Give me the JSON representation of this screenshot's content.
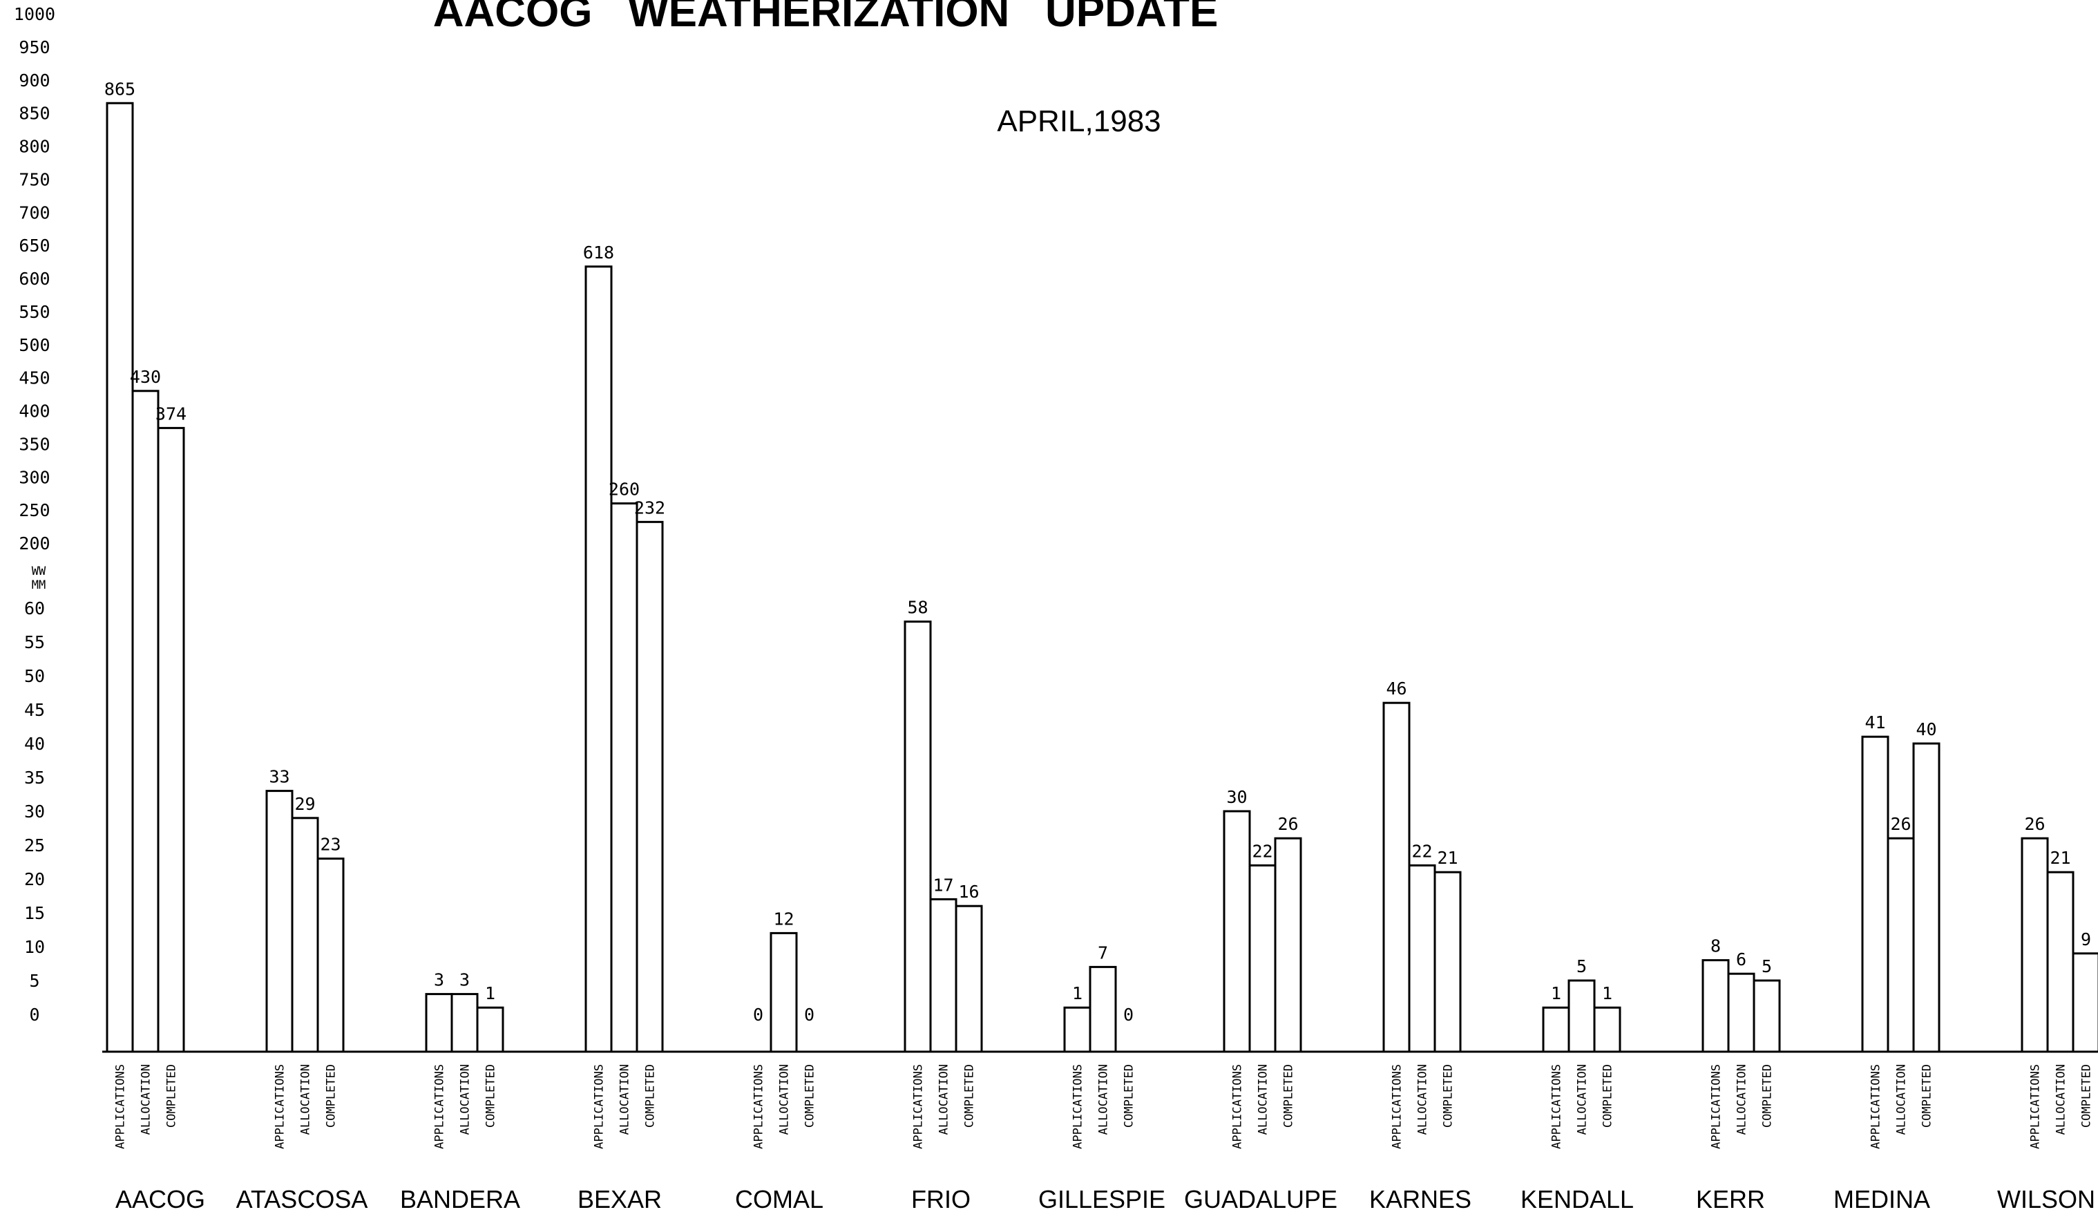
{
  "chart_data": {
    "type": "bar",
    "title": "AACOG   WEATHERIZATION   UPDATE",
    "subtitle": "APRIL,1983",
    "categories": [
      "AACOG",
      "ATASCOSA",
      "BANDERA",
      "BEXAR",
      "COMAL",
      "FRIO",
      "GILLESPIE",
      "GUADALUPE",
      "KARNES",
      "KENDALL",
      "KERR",
      "MEDINA",
      "WILSON"
    ],
    "bar_labels": [
      "APPLICATIONS",
      "ALLOCATION",
      "COMPLETED"
    ],
    "series": [
      {
        "name": "APPLICATIONS",
        "values": [
          865,
          33,
          3,
          618,
          0,
          58,
          1,
          30,
          46,
          1,
          8,
          41,
          26
        ]
      },
      {
        "name": "ALLOCATION",
        "values": [
          430,
          29,
          3,
          260,
          12,
          17,
          7,
          22,
          22,
          5,
          6,
          26,
          21
        ]
      },
      {
        "name": "COMPLETED",
        "values": [
          374,
          23,
          1,
          232,
          0,
          16,
          0,
          26,
          21,
          1,
          5,
          40,
          9
        ]
      }
    ],
    "y_axis": {
      "scale": "broken",
      "lower_ticks": [
        "0",
        "5",
        "10",
        "15",
        "20",
        "25",
        "30",
        "35",
        "40",
        "45",
        "50",
        "55",
        "60"
      ],
      "upper_ticks": [
        "200",
        "250",
        "300",
        "350",
        "400",
        "450",
        "500",
        "550",
        "600",
        "650",
        "700",
        "750",
        "800",
        "850",
        "900",
        "950",
        "1000"
      ],
      "break_mark": "WW\nMM",
      "lower_range": [
        0,
        60
      ],
      "upper_range": [
        200,
        1000
      ]
    },
    "grid": false,
    "legend": "none"
  }
}
